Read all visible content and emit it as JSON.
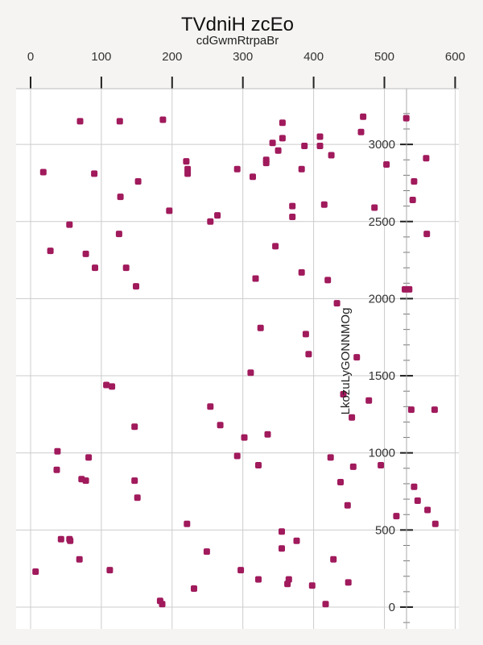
{
  "chart_data": {
    "type": "scatter",
    "title": "TVdniH zcEo",
    "subtitle": "cdGwmRtrpaBr",
    "xlabel": "",
    "ylabel": "LkozuLyGONNMOg",
    "xlim": [
      -20,
      605
    ],
    "ylim": [
      -130,
      3240
    ],
    "x_ticks": [
      0,
      100,
      200,
      300,
      400,
      500,
      600
    ],
    "y_ticks": [
      0,
      500,
      1000,
      1500,
      2000,
      2500,
      3000
    ],
    "grid": true,
    "x_axis_position": "top",
    "y_axis_position": "inside-right",
    "colors": {
      "marker": "#a01a5c",
      "background": "#f5f4f2",
      "plot_background": "#ffffff",
      "grid": "#cccccc"
    },
    "x": [
      470,
      531,
      70,
      126,
      187,
      356,
      409,
      467,
      356,
      342,
      387,
      350,
      425,
      333,
      333,
      220,
      409,
      222,
      222,
      503,
      18,
      90,
      152,
      292,
      314,
      383,
      127,
      486,
      559,
      542,
      540,
      370,
      415,
      196,
      55,
      370,
      264,
      254,
      535,
      125,
      560,
      28,
      78,
      346,
      91,
      135,
      383,
      318,
      318,
      420,
      149,
      529,
      433,
      325,
      389,
      393,
      461,
      311,
      442,
      478,
      107,
      115,
      538,
      571,
      454,
      254,
      268,
      335,
      147,
      302,
      38,
      292,
      424,
      456,
      495,
      82,
      322,
      37,
      72,
      438,
      78,
      147,
      542,
      547,
      151,
      448,
      561,
      517,
      221,
      572,
      355,
      43,
      55,
      376,
      56,
      355,
      249,
      69,
      428,
      7,
      112,
      297,
      322,
      365,
      449,
      363,
      398,
      231,
      183,
      186,
      417
    ],
    "y": [
      3180,
      3170,
      3150,
      3150,
      3160,
      3140,
      3050,
      3080,
      3040,
      3010,
      2990,
      2960,
      2930,
      2900,
      2880,
      2890,
      2990,
      2840,
      2810,
      2870,
      2820,
      2810,
      2760,
      2840,
      2790,
      2840,
      2660,
      2590,
      2910,
      2760,
      2640,
      2600,
      2610,
      2570,
      2480,
      2530,
      2540,
      2500,
      2060,
      2420,
      2420,
      2310,
      2290,
      2340,
      2200,
      2200,
      2170,
      2130,
      2130,
      2120,
      2080,
      2060,
      1970,
      1810,
      1770,
      1640,
      1620,
      1520,
      1380,
      1340,
      1440,
      1430,
      1280,
      1280,
      1230,
      1300,
      1180,
      1120,
      1170,
      1100,
      1010,
      980,
      970,
      910,
      920,
      970,
      920,
      890,
      830,
      810,
      820,
      820,
      780,
      690,
      710,
      660,
      630,
      590,
      540,
      540,
      490,
      440,
      440,
      430,
      430,
      380,
      360,
      310,
      310,
      230,
      240,
      240,
      180,
      180,
      160,
      150,
      140,
      120,
      40,
      20,
      20
    ]
  }
}
